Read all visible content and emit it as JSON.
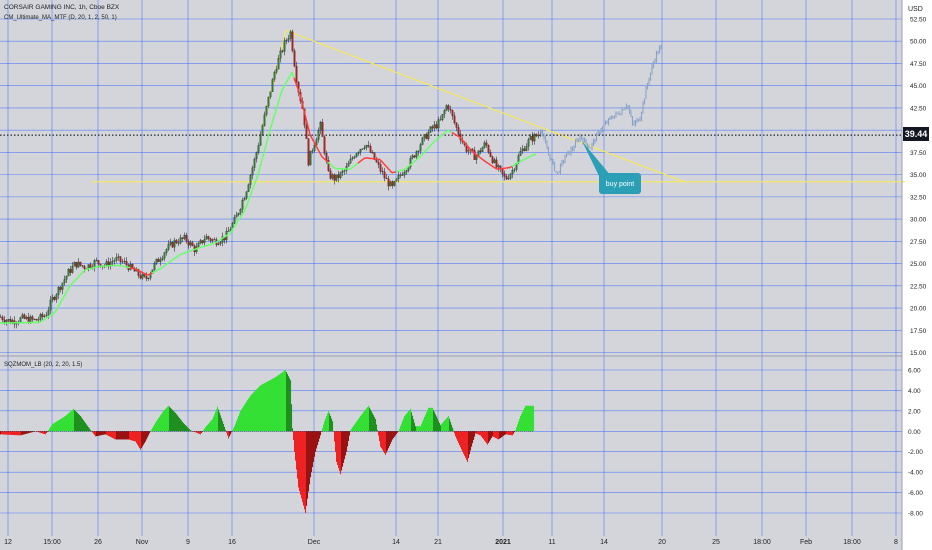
{
  "header": {
    "title": "CORSAIR GAMING INC, 1h, Cboe BZX",
    "indicator": "CM_Ultimate_MA_MTF (D, 20, 1, 2, 50, 1)",
    "currency": "USD"
  },
  "oscillator": {
    "title": "SQZMOM_LB (20, 2, 20, 1.5)"
  },
  "annotation": {
    "buy_point": "buy point"
  },
  "current_price": "39.44",
  "colors": {
    "bg": "#d3d5db",
    "grid": "#2962ff",
    "up": "#2e7d32",
    "down": "#b71c1c",
    "ma_up": "#66ff66",
    "ma_down": "#ff3b3b",
    "trend": "#f5e663",
    "forecast": "#8aa4c8",
    "callout": "#2a9fb6",
    "mom_pos": "#33e033",
    "mom_neg": "#ee2222"
  },
  "chart_data": [
    {
      "type": "candlestick",
      "symbol": "CORSAIR GAMING INC",
      "timeframe": "1h",
      "y_axis": {
        "ticks": [
          15.0,
          17.5,
          20.0,
          22.5,
          25.0,
          27.5,
          30.0,
          32.5,
          35.0,
          37.5,
          40.0,
          42.5,
          45.0,
          47.5,
          50.0,
          52.5
        ]
      },
      "x_axis": {
        "ticks": [
          "12",
          "15:00",
          "26",
          "Nov",
          "9",
          "16",
          "Dec",
          "14",
          "21",
          "2021",
          "11",
          "14",
          "20",
          "25",
          "18:00",
          "Feb",
          "18:00",
          "8"
        ]
      },
      "price_path": [
        [
          0,
          19.0
        ],
        [
          10,
          18.5
        ],
        [
          22,
          18.8
        ],
        [
          35,
          18.6
        ],
        [
          45,
          19.2
        ],
        [
          52,
          21.0
        ],
        [
          60,
          22.5
        ],
        [
          68,
          24.0
        ],
        [
          75,
          25.0
        ],
        [
          85,
          24.6
        ],
        [
          95,
          25.2
        ],
        [
          105,
          24.8
        ],
        [
          115,
          25.5
        ],
        [
          125,
          25.0
        ],
        [
          135,
          24.0
        ],
        [
          145,
          23.2
        ],
        [
          155,
          25.0
        ],
        [
          165,
          26.5
        ],
        [
          175,
          27.5
        ],
        [
          185,
          27.8
        ],
        [
          195,
          26.5
        ],
        [
          205,
          28.0
        ],
        [
          215,
          27.5
        ],
        [
          225,
          28.0
        ],
        [
          235,
          30.0
        ],
        [
          245,
          33.0
        ],
        [
          255,
          37.0
        ],
        [
          265,
          42.0
        ],
        [
          275,
          47.0
        ],
        [
          285,
          50.0
        ],
        [
          290,
          51.0
        ],
        [
          297,
          45.0
        ],
        [
          303,
          42.0
        ],
        [
          308,
          36.5
        ],
        [
          315,
          39.0
        ],
        [
          320,
          40.5
        ],
        [
          328,
          35.0
        ],
        [
          335,
          34.5
        ],
        [
          345,
          35.5
        ],
        [
          355,
          37.5
        ],
        [
          365,
          38.5
        ],
        [
          375,
          36.5
        ],
        [
          385,
          34.5
        ],
        [
          392,
          33.5
        ],
        [
          400,
          35.0
        ],
        [
          410,
          36.5
        ],
        [
          420,
          38.5
        ],
        [
          430,
          40.0
        ],
        [
          440,
          41.0
        ],
        [
          447,
          43.0
        ],
        [
          455,
          40.5
        ],
        [
          465,
          38.0
        ],
        [
          475,
          37.0
        ],
        [
          485,
          38.5
        ],
        [
          495,
          36.0
        ],
        [
          505,
          34.5
        ],
        [
          512,
          35.5
        ],
        [
          520,
          37.5
        ],
        [
          530,
          39.0
        ],
        [
          538,
          39.5
        ],
        [
          541,
          40.0
        ]
      ],
      "ma_path": [
        [
          0,
          18.3
        ],
        [
          40,
          18.4
        ],
        [
          55,
          19.5
        ],
        [
          70,
          22.5
        ],
        [
          85,
          24.3
        ],
        [
          100,
          24.7
        ],
        [
          120,
          24.8
        ],
        [
          135,
          24.4
        ],
        [
          148,
          23.7
        ],
        [
          160,
          24.4
        ],
        [
          180,
          26.0
        ],
        [
          200,
          26.8
        ],
        [
          215,
          27.3
        ],
        [
          230,
          28.4
        ],
        [
          245,
          31.0
        ],
        [
          258,
          35.0
        ],
        [
          270,
          40.0
        ],
        [
          282,
          44.5
        ],
        [
          292,
          46.5
        ],
        [
          300,
          44.0
        ],
        [
          310,
          39.5
        ],
        [
          322,
          37.0
        ],
        [
          335,
          35.7
        ],
        [
          350,
          35.6
        ],
        [
          365,
          36.9
        ],
        [
          380,
          36.7
        ],
        [
          392,
          35.2
        ],
        [
          405,
          35.6
        ],
        [
          420,
          37.0
        ],
        [
          435,
          38.8
        ],
        [
          448,
          40.0
        ],
        [
          460,
          39.2
        ],
        [
          472,
          37.6
        ],
        [
          485,
          36.5
        ],
        [
          497,
          35.6
        ],
        [
          510,
          35.8
        ],
        [
          522,
          36.6
        ],
        [
          535,
          37.3
        ]
      ],
      "ma_trend": [
        [
          0,
          "up"
        ],
        [
          130,
          "down"
        ],
        [
          152,
          "up"
        ],
        [
          293,
          "down"
        ],
        [
          327,
          "up"
        ],
        [
          358,
          "down"
        ],
        [
          396,
          "up"
        ],
        [
          452,
          "down"
        ],
        [
          512,
          "up"
        ]
      ],
      "forecast_path": [
        [
          541,
          40.0
        ],
        [
          548,
          37.5
        ],
        [
          557,
          35.0
        ],
        [
          565,
          37.0
        ],
        [
          573,
          38.0
        ],
        [
          580,
          39.3
        ],
        [
          590,
          38.0
        ],
        [
          600,
          40.0
        ],
        [
          612,
          41.5
        ],
        [
          620,
          42.0
        ],
        [
          627,
          43.0
        ],
        [
          633,
          40.5
        ],
        [
          640,
          41.5
        ],
        [
          648,
          45.5
        ],
        [
          656,
          48.5
        ],
        [
          662,
          49.5
        ]
      ],
      "trendlines": [
        {
          "from": [
            286,
            51.2
          ],
          "to": [
            684,
            34.2
          ]
        },
        {
          "from": [
            262,
            40.0
          ],
          "to": [
            286,
            51.2
          ]
        },
        {
          "from": [
            92,
            34.2
          ],
          "to": [
            905,
            34.2
          ]
        }
      ],
      "horizontal_level": 39.44
    },
    {
      "type": "bar",
      "title": "SQZMOM_LB (20, 2, 20, 1.5)",
      "y_axis": {
        "ticks": [
          -8.0,
          -6.0,
          -4.0,
          -2.0,
          0.0,
          2.0,
          4.0,
          6.0
        ]
      },
      "momentum_path": [
        [
          0,
          -0.3
        ],
        [
          20,
          -0.4
        ],
        [
          35,
          0.0
        ],
        [
          45,
          -0.3
        ],
        [
          52,
          0.7
        ],
        [
          65,
          1.5
        ],
        [
          73,
          2.2
        ],
        [
          80,
          1.5
        ],
        [
          88,
          0.4
        ],
        [
          95,
          -0.5
        ],
        [
          105,
          -0.3
        ],
        [
          115,
          -0.8
        ],
        [
          128,
          -0.8
        ],
        [
          135,
          -1.0
        ],
        [
          140,
          -1.8
        ],
        [
          145,
          -1.0
        ],
        [
          150,
          0.0
        ],
        [
          156,
          1.0
        ],
        [
          163,
          2.0
        ],
        [
          168,
          2.5
        ],
        [
          175,
          1.8
        ],
        [
          183,
          0.8
        ],
        [
          190,
          0.1
        ],
        [
          200,
          -0.3
        ],
        [
          205,
          0.4
        ],
        [
          212,
          1.2
        ],
        [
          217,
          2.4
        ],
        [
          222,
          1.0
        ],
        [
          228,
          -0.7
        ],
        [
          234,
          0.5
        ],
        [
          240,
          2.0
        ],
        [
          250,
          3.5
        ],
        [
          260,
          4.5
        ],
        [
          275,
          5.3
        ],
        [
          285,
          6.0
        ],
        [
          290,
          5.0
        ],
        [
          292,
          0.3
        ],
        [
          294,
          -2.0
        ],
        [
          298,
          -5.5
        ],
        [
          305,
          -8.0
        ],
        [
          310,
          -4.5
        ],
        [
          315,
          -2.0
        ],
        [
          320,
          -0.4
        ],
        [
          324,
          1.0
        ],
        [
          328,
          2.0
        ],
        [
          332,
          1.0
        ],
        [
          336,
          -3.0
        ],
        [
          340,
          -4.2
        ],
        [
          346,
          -2.0
        ],
        [
          350,
          0.1
        ],
        [
          360,
          1.5
        ],
        [
          368,
          2.5
        ],
        [
          375,
          1.2
        ],
        [
          380,
          -1.5
        ],
        [
          385,
          -2.3
        ],
        [
          392,
          -0.8
        ],
        [
          398,
          0.0
        ],
        [
          404,
          1.5
        ],
        [
          410,
          2.2
        ],
        [
          415,
          0.5
        ],
        [
          420,
          0.5
        ],
        [
          428,
          2.3
        ],
        [
          432,
          2.3
        ],
        [
          440,
          0.6
        ],
        [
          448,
          1.5
        ],
        [
          455,
          -0.5
        ],
        [
          462,
          -2.0
        ],
        [
          467,
          -3.0
        ],
        [
          471,
          -1.5
        ],
        [
          475,
          -0.2
        ],
        [
          480,
          -0.4
        ],
        [
          487,
          -1.3
        ],
        [
          492,
          -0.5
        ],
        [
          498,
          -0.8
        ],
        [
          505,
          -0.3
        ],
        [
          512,
          -0.4
        ],
        [
          515,
          0.1
        ],
        [
          520,
          1.5
        ],
        [
          525,
          2.5
        ],
        [
          533,
          2.5
        ]
      ]
    }
  ]
}
